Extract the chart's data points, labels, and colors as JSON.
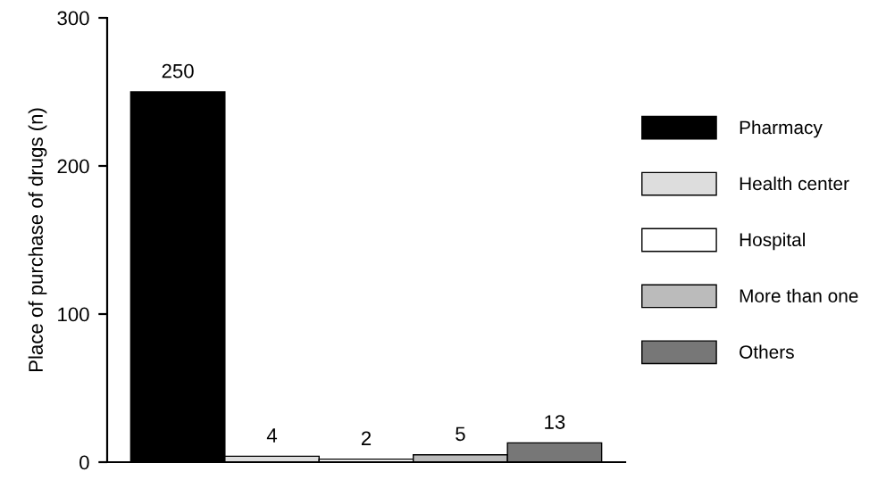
{
  "chart_data": {
    "type": "bar",
    "ylabel": "Place of purchase of drugs (n)",
    "categories": [
      null,
      null,
      null,
      null,
      null
    ],
    "series": [
      {
        "name": "Pharmacy",
        "color": "#000000",
        "values": [
          250,
          null,
          null,
          null,
          null
        ]
      },
      {
        "name": "Health center",
        "color": "#dddddd",
        "values": [
          null,
          4,
          null,
          null,
          null
        ]
      },
      {
        "name": "Hospital",
        "color": "#ffffff",
        "values": [
          null,
          null,
          2,
          null,
          null
        ]
      },
      {
        "name": "More than one",
        "color": "#bbbbbb",
        "values": [
          null,
          null,
          null,
          5,
          null
        ]
      },
      {
        "name": "Others",
        "color": "#777777",
        "values": [
          null,
          null,
          null,
          null,
          13
        ]
      }
    ],
    "data_labels": true,
    "ylim": [
      0,
      300
    ],
    "yticks": [
      0,
      100,
      200,
      300
    ],
    "grid": false,
    "legend": "right"
  }
}
